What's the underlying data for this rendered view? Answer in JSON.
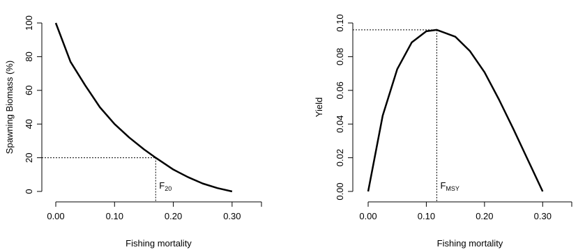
{
  "chart_data": [
    {
      "type": "line",
      "xlabel": "Fishing mortality",
      "ylabel": "Spawning Biomass (%)",
      "xlim": [
        0,
        0.35
      ],
      "ylim": [
        0,
        100
      ],
      "x_ticks": [
        "0.00",
        "0.10",
        "0.20",
        "0.30"
      ],
      "y_ticks": [
        "0",
        "20",
        "40",
        "60",
        "80",
        "100"
      ],
      "series": [
        {
          "x": [
            0.0,
            0.025,
            0.05,
            0.075,
            0.1,
            0.125,
            0.15,
            0.17,
            0.2,
            0.225,
            0.25,
            0.275,
            0.3
          ],
          "values": [
            100,
            77,
            63,
            50,
            40,
            32,
            25,
            20,
            13,
            8.5,
            4.7,
            2,
            0
          ]
        }
      ],
      "reference": {
        "label": "F",
        "sub": "20",
        "x": 0.17,
        "y": 20
      }
    },
    {
      "type": "line",
      "xlabel": "Fishing mortality",
      "ylabel": "Yield",
      "xlim": [
        0,
        0.35
      ],
      "ylim": [
        0,
        0.1
      ],
      "x_ticks": [
        "0.00",
        "0.10",
        "0.20",
        "0.30"
      ],
      "y_ticks": [
        "0.00",
        "0.02",
        "0.04",
        "0.06",
        "0.08",
        "0.10"
      ],
      "series": [
        {
          "x": [
            0.0,
            0.025,
            0.05,
            0.075,
            0.1,
            0.118,
            0.15,
            0.175,
            0.2,
            0.225,
            0.25,
            0.275,
            0.3
          ],
          "values": [
            0,
            0.045,
            0.0726,
            0.0885,
            0.0951,
            0.0959,
            0.0918,
            0.0833,
            0.0708,
            0.0545,
            0.0368,
            0.0184,
            0
          ]
        }
      ],
      "reference": {
        "label": "F",
        "sub": "MSY",
        "x": 0.118,
        "y": 0.0959
      }
    }
  ]
}
